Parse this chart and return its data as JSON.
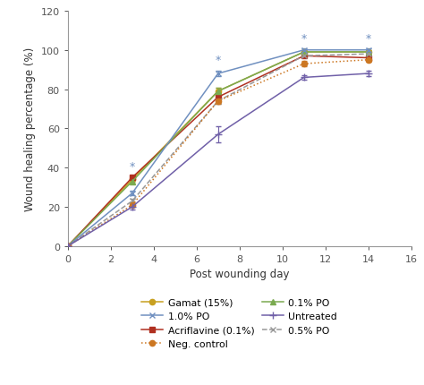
{
  "days": [
    0,
    3,
    7,
    11,
    14
  ],
  "series": [
    {
      "name": "Gamat (15%)",
      "values": [
        0,
        34,
        79,
        99,
        99
      ],
      "errors": [
        0,
        1.2,
        1.5,
        0.8,
        0.8
      ],
      "color": "#c8a020",
      "linestyle": "-",
      "marker": "o",
      "markersize": 4.5,
      "markerfacecolor": "#c8a020"
    },
    {
      "name": "Acriflavine (0.1%)",
      "values": [
        0,
        35,
        76,
        97,
        96
      ],
      "errors": [
        0,
        1.2,
        1.5,
        0.8,
        0.8
      ],
      "color": "#b03020",
      "linestyle": "-",
      "marker": "s",
      "markersize": 4.5,
      "markerfacecolor": "#b03020"
    },
    {
      "name": "0.1% PO",
      "values": [
        0,
        33,
        79,
        99,
        99
      ],
      "errors": [
        0,
        1.2,
        1.5,
        0.8,
        0.8
      ],
      "color": "#7aaa50",
      "linestyle": "-",
      "marker": "^",
      "markersize": 4.5,
      "markerfacecolor": "#7aaa50"
    },
    {
      "name": "0.5% PO",
      "values": [
        0,
        23,
        74,
        97,
        98
      ],
      "errors": [
        0,
        1.2,
        1.5,
        0.8,
        0.8
      ],
      "color": "#999999",
      "linestyle": "--",
      "marker": "x",
      "markersize": 4.5,
      "markerfacecolor": "#999999"
    },
    {
      "name": "1.0% PO",
      "values": [
        0,
        27,
        88,
        100,
        100
      ],
      "errors": [
        0,
        1.2,
        1.5,
        0.8,
        0.8
      ],
      "color": "#7090c0",
      "linestyle": "-",
      "marker": "x",
      "markersize": 4.5,
      "markerfacecolor": "#7090c0"
    },
    {
      "name": "Neg. control",
      "values": [
        0,
        21,
        74,
        93,
        95
      ],
      "errors": [
        0,
        1.2,
        1.5,
        1.2,
        1.2
      ],
      "color": "#cc7722",
      "linestyle": ":",
      "marker": "o",
      "markersize": 4.5,
      "markerfacecolor": "#cc7722"
    },
    {
      "name": "Untreated",
      "values": [
        0,
        20,
        57,
        86,
        88
      ],
      "errors": [
        0,
        1.2,
        4.0,
        1.2,
        1.2
      ],
      "color": "#7060a8",
      "linestyle": "-",
      "marker": "+",
      "markersize": 5.5,
      "markerfacecolor": "#7060a8"
    }
  ],
  "star_annotations": [
    {
      "day": 3,
      "y": 38,
      "color": "#7090c0"
    },
    {
      "day": 7,
      "y": 92,
      "color": "#7090c0"
    },
    {
      "day": 11,
      "y": 103,
      "color": "#7090c0"
    },
    {
      "day": 14,
      "y": 103,
      "color": "#7090c0"
    }
  ],
  "xlabel": "Post wounding day",
  "ylabel": "Wound healing percentage (%)",
  "xlim": [
    0,
    16
  ],
  "ylim": [
    0,
    120
  ],
  "yticks": [
    0,
    20,
    40,
    60,
    80,
    100,
    120
  ],
  "xticks": [
    0,
    2,
    4,
    6,
    8,
    10,
    12,
    14,
    16
  ],
  "legend_ncol": 2,
  "legend_order": [
    "Gamat (15%)",
    "1.0% PO",
    "Acriflavine (0.1%)",
    "Neg. control",
    "0.1% PO",
    "Untreated",
    "0.5% PO"
  ]
}
